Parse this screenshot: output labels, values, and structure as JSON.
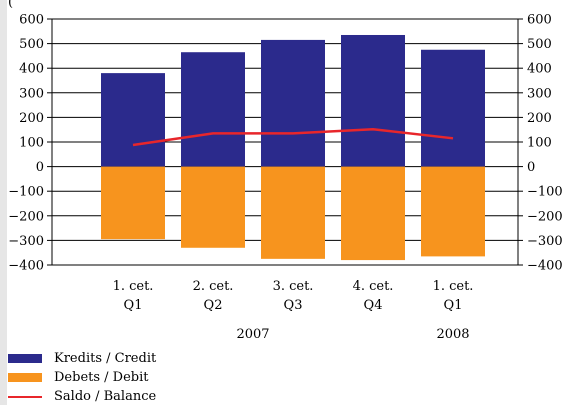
{
  "top_label": "(",
  "colors": {
    "credit": "#2b2a8c",
    "debit": "#f7941e",
    "balance": "#e8262b"
  },
  "legend": [
    {
      "key": "credit",
      "label": "Kredits / Credit"
    },
    {
      "key": "debit",
      "label": "Debets / Debit"
    },
    {
      "key": "balance",
      "label": "Saldo / Balance"
    }
  ],
  "chart_data": {
    "type": "bar",
    "categories": [
      {
        "line1": "1. cet.",
        "line2": "Q1"
      },
      {
        "line1": "2. cet.",
        "line2": "Q2"
      },
      {
        "line1": "3. cet.",
        "line2": "Q3"
      },
      {
        "line1": "4. cet.",
        "line2": "Q4"
      },
      {
        "line1": "1. cet.",
        "line2": "Q1"
      }
    ],
    "groups": [
      {
        "label": "2007",
        "from": 0,
        "to": 3
      },
      {
        "label": "2008",
        "from": 4,
        "to": 4
      }
    ],
    "series": [
      {
        "name": "Kredits / Credit",
        "type": "bar",
        "values": [
          380,
          465,
          515,
          535,
          475
        ]
      },
      {
        "name": "Debets / Debit",
        "type": "bar",
        "values": [
          -295,
          -330,
          -375,
          -380,
          -365
        ]
      },
      {
        "name": "Saldo / Balance",
        "type": "line",
        "values": [
          88,
          135,
          135,
          152,
          115
        ]
      }
    ],
    "ylim": [
      -400,
      600
    ],
    "yticks": [
      600,
      500,
      400,
      300,
      200,
      100,
      0,
      -100,
      -200,
      -300,
      -400
    ],
    "ytick_labels_left": [
      "600",
      "500",
      "400",
      "300",
      "200",
      "100",
      "0",
      "−100",
      "−200",
      "−300",
      "−400"
    ],
    "ytick_labels_right": [
      "600",
      "500",
      "400",
      "300",
      "200",
      "100",
      "0",
      "−100",
      "−200",
      "−300",
      "−400"
    ],
    "grid": true
  }
}
